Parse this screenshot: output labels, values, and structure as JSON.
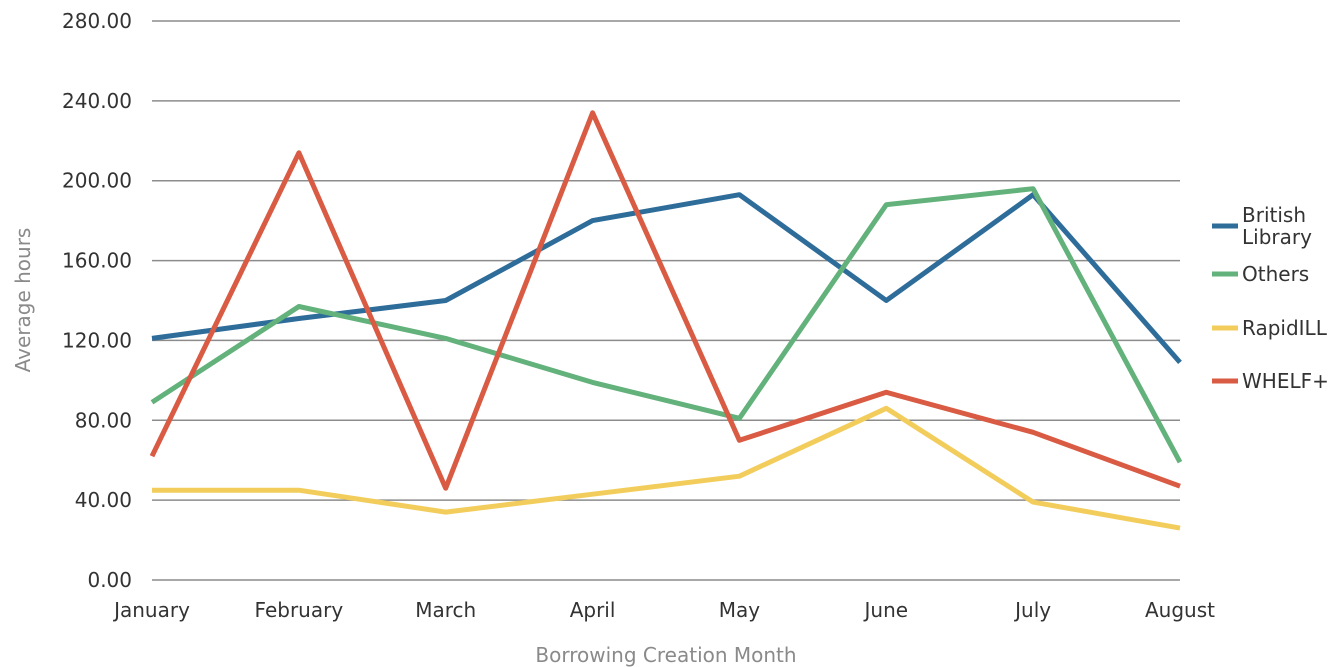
{
  "chart_data": {
    "type": "line",
    "xlabel": "Borrowing Creation Month",
    "ylabel": "Average hours",
    "categories": [
      "January",
      "February",
      "March",
      "April",
      "May",
      "June",
      "July",
      "August"
    ],
    "ylim": [
      0,
      280
    ],
    "yticks": [
      "0.00",
      "40.00",
      "80.00",
      "120.00",
      "160.00",
      "200.00",
      "240.00",
      "280.00"
    ],
    "grid": true,
    "legend_position": "right",
    "series": [
      {
        "name": "British Library",
        "name_lines": [
          "British",
          "Library"
        ],
        "color": "#2e6c9a",
        "values": [
          121,
          131,
          140,
          180,
          193,
          140,
          193,
          109
        ]
      },
      {
        "name": "Others",
        "name_lines": [
          "Others"
        ],
        "color": "#63b17b",
        "values": [
          89,
          137,
          121,
          99,
          81,
          188,
          196,
          59
        ]
      },
      {
        "name": "RapidILL",
        "name_lines": [
          "RapidILL"
        ],
        "color": "#f2cd5c",
        "values": [
          45,
          45,
          34,
          43,
          52,
          86,
          39,
          26
        ]
      },
      {
        "name": "WHELF+",
        "name_lines": [
          "WHELF+"
        ],
        "color": "#d95b43",
        "values": [
          62,
          214,
          46,
          234,
          70,
          94,
          74,
          47
        ]
      }
    ]
  }
}
